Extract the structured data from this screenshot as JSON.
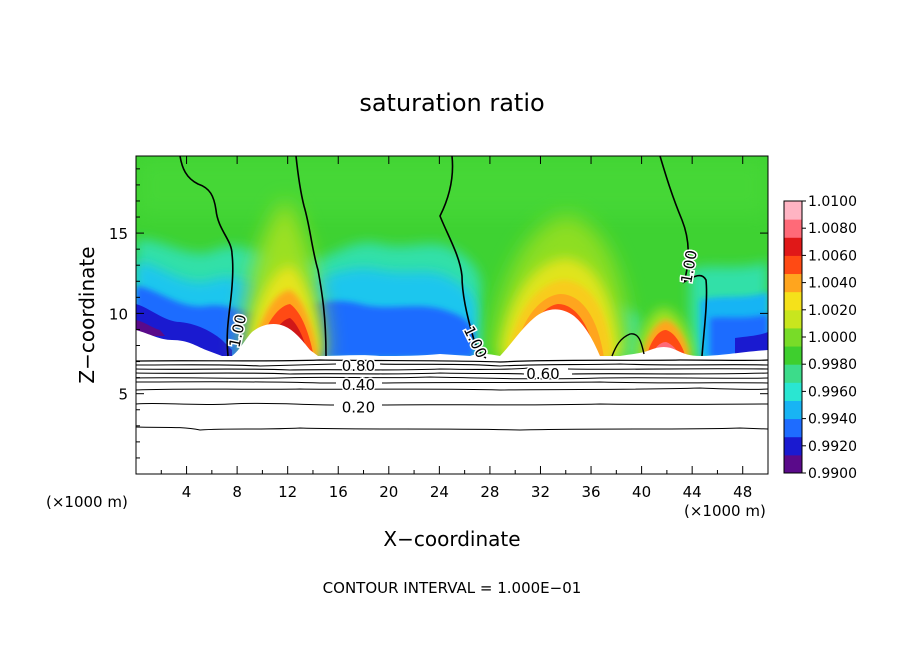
{
  "chart_data": {
    "type": "heatmap",
    "title": "saturation ratio",
    "xlabel": "X−coordinate",
    "ylabel": "Z−coordinate",
    "x_unit_left": "(×1000 m)",
    "x_unit_right": "(×1000 m)",
    "xlim": [
      0,
      50
    ],
    "ylim": [
      0,
      19.8
    ],
    "x_ticks": [
      4,
      8,
      12,
      16,
      20,
      24,
      28,
      32,
      36,
      40,
      44,
      48
    ],
    "y_ticks": [
      5,
      10,
      15
    ],
    "footer": "CONTOUR INTERVAL = 1.000E−01",
    "colorbar": {
      "range": [
        0.99,
        1.01
      ],
      "labels": [
        "1.0100",
        "1.0080",
        "1.0060",
        "1.0040",
        "1.0020",
        "1.0000",
        "0.9980",
        "0.9960",
        "0.9940",
        "0.9920",
        "0.9900"
      ],
      "colors": [
        "#5a0a8a",
        "#1a1ad0",
        "#1e6cff",
        "#18b4f4",
        "#2ae6d2",
        "#3cdc8a",
        "#3ecf2e",
        "#78dc28",
        "#c8e61e",
        "#f5e11a",
        "#ffa51e",
        "#ff4a14",
        "#e01818",
        "#ff6a78",
        "#ffb4c3"
      ]
    },
    "contour_labels": [
      {
        "text": "1.00",
        "x": 8.1,
        "y": 8.9,
        "angle": -78
      },
      {
        "text": "1.00",
        "x": 26.8,
        "y": 8.2,
        "angle": 64
      },
      {
        "text": "1.00",
        "x": 43.8,
        "y": 12.9,
        "angle": -80
      },
      {
        "text": "0.80",
        "x": 17.6,
        "y": 6.7,
        "angle": 0
      },
      {
        "text": "0.60",
        "x": 32.2,
        "y": 6.2,
        "angle": 0
      },
      {
        "text": "0.40",
        "x": 17.6,
        "y": 5.5,
        "angle": 0
      },
      {
        "text": "0.20",
        "x": 17.6,
        "y": 4.1,
        "angle": 0
      }
    ],
    "low_contour_levels": [
      0.1,
      0.2,
      0.3,
      0.4,
      0.5,
      0.6,
      0.7,
      0.8,
      0.9
    ],
    "grid": false,
    "legend": "colorbar right"
  }
}
